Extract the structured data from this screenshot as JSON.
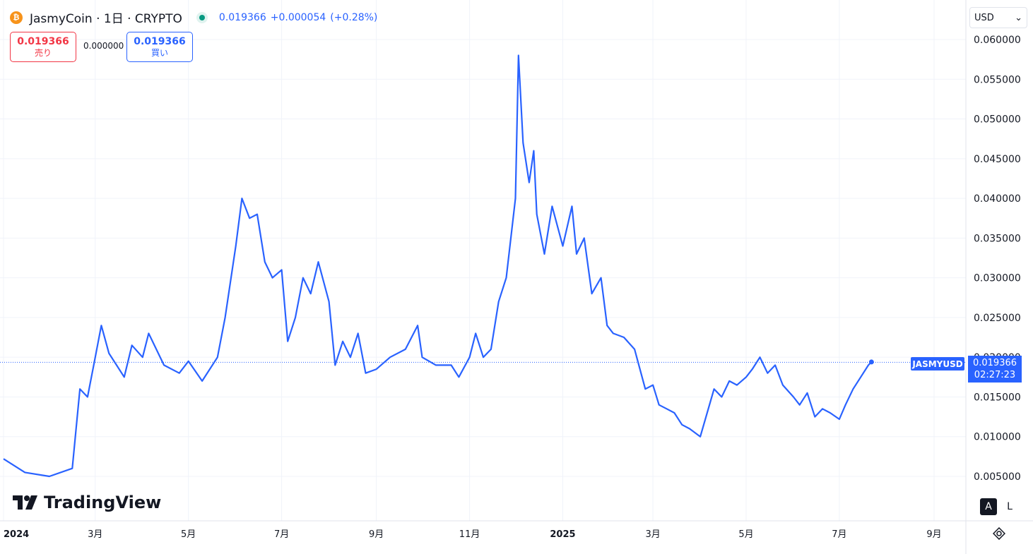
{
  "header": {
    "title": "JasmyCoin · 1日 · CRYPTO",
    "price": "0.019366",
    "change": "+0.000054",
    "change_pct": "(+0.28%)"
  },
  "trade": {
    "sell_price": "0.019366",
    "sell_label": "売り",
    "spread": "0.000000",
    "buy_price": "0.019366",
    "buy_label": "買い"
  },
  "currency": "USD",
  "logo_text": "TradingView",
  "buttons": {
    "auto": "A",
    "log": "L"
  },
  "price_tag": {
    "symbol": "JASMYUSD",
    "price": "0.019366",
    "countdown": "02:27:23"
  },
  "colors": {
    "line": "#2962ff",
    "sell": "#f23645",
    "buy": "#2962ff",
    "live": "#089981"
  },
  "chart_data": {
    "type": "line",
    "series": [
      {
        "name": "JASMYUSD",
        "values": []
      }
    ],
    "x_dates": [
      "2024-01-01",
      "2024-01-15",
      "2024-01-31",
      "2024-02-15",
      "2024-02-20",
      "2024-02-25",
      "2024-03-01",
      "2024-03-05",
      "2024-03-10",
      "2024-03-15",
      "2024-03-20",
      "2024-03-25",
      "2024-04-01",
      "2024-04-05",
      "2024-04-15",
      "2024-04-25",
      "2024-05-01",
      "2024-05-10",
      "2024-05-20",
      "2024-05-25",
      "2024-06-01",
      "2024-06-05",
      "2024-06-10",
      "2024-06-15",
      "2024-06-20",
      "2024-06-25",
      "2024-07-01",
      "2024-07-05",
      "2024-07-10",
      "2024-07-15",
      "2024-07-20",
      "2024-07-25",
      "2024-08-01",
      "2024-08-05",
      "2024-08-10",
      "2024-08-15",
      "2024-08-20",
      "2024-08-25",
      "2024-09-01",
      "2024-09-10",
      "2024-09-20",
      "2024-09-28",
      "2024-10-01",
      "2024-10-10",
      "2024-10-20",
      "2024-10-25",
      "2024-11-01",
      "2024-11-05",
      "2024-11-10",
      "2024-11-15",
      "2024-11-20",
      "2024-11-25",
      "2024-12-01",
      "2024-12-03",
      "2024-12-06",
      "2024-12-10",
      "2024-12-13",
      "2024-12-15",
      "2024-12-20",
      "2024-12-25",
      "2025-01-01",
      "2025-01-07",
      "2025-01-10",
      "2025-01-15",
      "2025-01-20",
      "2025-01-26",
      "2025-01-30",
      "2025-02-03",
      "2025-02-10",
      "2025-02-17",
      "2025-02-24",
      "2025-03-01",
      "2025-03-05",
      "2025-03-10",
      "2025-03-15",
      "2025-03-20",
      "2025-03-25",
      "2025-04-01",
      "2025-04-07",
      "2025-04-10",
      "2025-04-15",
      "2025-04-20",
      "2025-04-25",
      "2025-05-01",
      "2025-05-05",
      "2025-05-10",
      "2025-05-15",
      "2025-05-20",
      "2025-05-25",
      "2025-06-01",
      "2025-06-05",
      "2025-06-10",
      "2025-06-15",
      "2025-06-20",
      "2025-06-25",
      "2025-07-01",
      "2025-07-05",
      "2025-07-10",
      "2025-07-15",
      "2025-07-20",
      "2025-07-22"
    ],
    "y_values": [
      0.0072,
      0.0055,
      0.005,
      0.006,
      0.016,
      0.015,
      0.02,
      0.024,
      0.0205,
      0.019,
      0.0175,
      0.0215,
      0.02,
      0.023,
      0.019,
      0.018,
      0.0195,
      0.017,
      0.02,
      0.025,
      0.034,
      0.04,
      0.0375,
      0.038,
      0.032,
      0.03,
      0.031,
      0.022,
      0.025,
      0.03,
      0.028,
      0.032,
      0.027,
      0.019,
      0.022,
      0.02,
      0.023,
      0.018,
      0.0185,
      0.02,
      0.021,
      0.024,
      0.02,
      0.019,
      0.019,
      0.0175,
      0.02,
      0.023,
      0.02,
      0.021,
      0.027,
      0.03,
      0.04,
      0.058,
      0.047,
      0.042,
      0.046,
      0.038,
      0.033,
      0.039,
      0.034,
      0.039,
      0.033,
      0.035,
      0.028,
      0.03,
      0.024,
      0.023,
      0.0225,
      0.021,
      0.016,
      0.0165,
      0.014,
      0.0135,
      0.013,
      0.0115,
      0.011,
      0.01,
      0.014,
      0.016,
      0.015,
      0.017,
      0.0165,
      0.0175,
      0.0185,
      0.02,
      0.018,
      0.019,
      0.0165,
      0.015,
      0.014,
      0.0155,
      0.0125,
      0.0135,
      0.013,
      0.0122,
      0.014,
      0.016,
      0.0175,
      0.019,
      0.0194
    ],
    "yticks": [
      "0.005000",
      "0.010000",
      "0.015000",
      "0.020000",
      "0.025000",
      "0.030000",
      "0.035000",
      "0.040000",
      "0.045000",
      "0.050000",
      "0.055000",
      "0.060000"
    ],
    "xticks": [
      "2024",
      "3月",
      "5月",
      "7月",
      "9月",
      "11月",
      "2025",
      "3月",
      "5月",
      "7月",
      "9月"
    ],
    "ylim": [
      0,
      0.062
    ],
    "current_price": 0.019366
  }
}
